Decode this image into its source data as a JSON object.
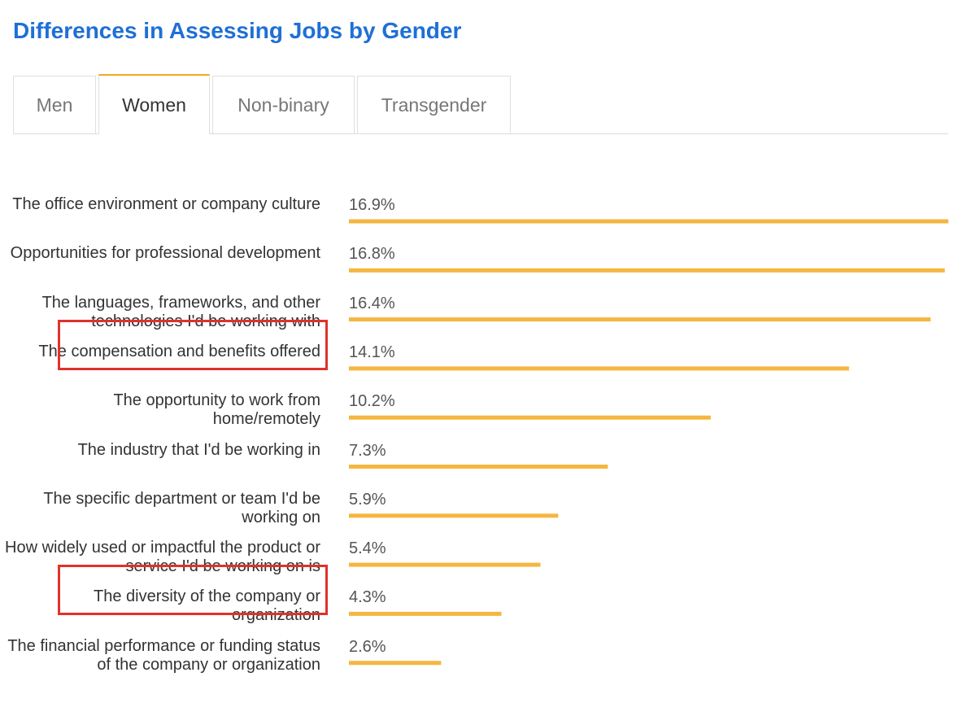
{
  "title": "Differences in Assessing Jobs by Gender",
  "tabs": [
    {
      "label": "Men",
      "active": false
    },
    {
      "label": "Women",
      "active": true
    },
    {
      "label": "Non-binary",
      "active": false
    },
    {
      "label": "Transgender",
      "active": false
    }
  ],
  "colors": {
    "bar": "#f5b640",
    "title": "#1f6fd6",
    "highlight": "#e0322b",
    "active_tab": "#f5a623"
  },
  "chart_data": {
    "type": "bar",
    "orientation": "horizontal",
    "categories": [
      "The office environment or company culture",
      "Opportunities for professional development",
      "The languages, frameworks, and other technologies I'd be working with",
      "The compensation and benefits offered",
      "The opportunity to work from home/remotely",
      "The industry that I'd be working in",
      "The specific department or team I'd be working on",
      "How widely used or impactful the product or service I'd be working on is",
      "The diversity of the company or organization",
      "The financial performance or funding status of the company or organization"
    ],
    "values": [
      16.9,
      16.8,
      16.4,
      14.1,
      10.2,
      7.3,
      5.9,
      5.4,
      4.3,
      2.6
    ],
    "value_labels": [
      "16.9%",
      "16.8%",
      "16.4%",
      "14.1%",
      "10.2%",
      "7.3%",
      "5.9%",
      "5.4%",
      "4.3%",
      "2.6%"
    ],
    "highlighted_categories": [
      3,
      8
    ],
    "xlim": [
      0,
      16.9
    ],
    "grid": false,
    "legend": "none"
  }
}
